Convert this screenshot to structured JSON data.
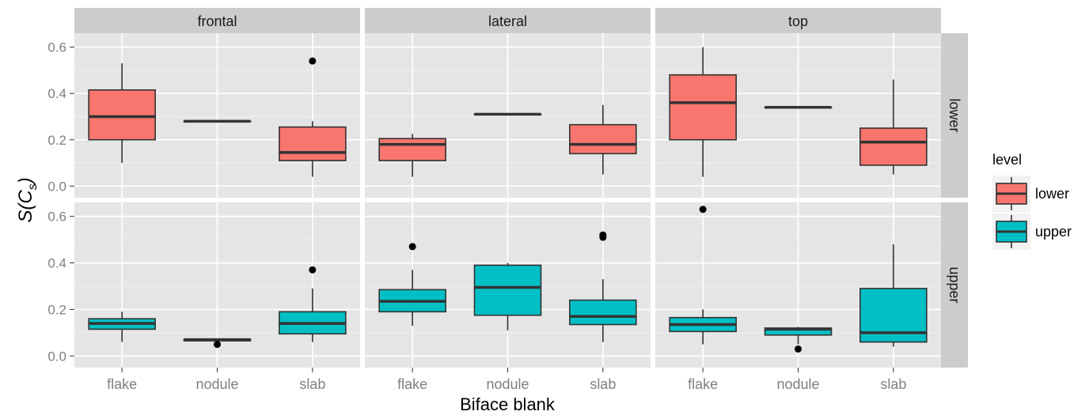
{
  "chart_data": {
    "type": "boxplot",
    "xlabel": "Biface blank",
    "ylabel_main": "S(C",
    "ylabel_sub": "s",
    "ylabel_close": ")",
    "categories": [
      "flake",
      "nodule",
      "slab"
    ],
    "facet_columns": [
      "frontal",
      "lateral",
      "top"
    ],
    "facet_rows": [
      "lower",
      "upper"
    ],
    "y_ticks": [
      "0.0",
      "0.2",
      "0.4",
      "0.6"
    ],
    "y_tick_values": [
      0.0,
      0.2,
      0.4,
      0.6
    ],
    "ylim": [
      -0.05,
      0.66
    ],
    "legend": {
      "title": "level",
      "position": "right",
      "entries": [
        {
          "label": "lower",
          "color": "#F8766D"
        },
        {
          "label": "upper",
          "color": "#00BFC4"
        }
      ]
    },
    "colors": {
      "panel_bg": "#E5E5E5",
      "grid": "#FFFFFF",
      "strip_bg": "#CCCCCC",
      "lower": "#F8766D",
      "upper": "#00BFC4",
      "line": "#333333"
    },
    "panels": [
      {
        "row": "lower",
        "col": "frontal",
        "boxes": [
          {
            "category": "flake",
            "min": 0.1,
            "q1": 0.2,
            "median": 0.3,
            "q3": 0.415,
            "max": 0.53,
            "outliers": []
          },
          {
            "category": "nodule",
            "min": 0.28,
            "q1": 0.28,
            "median": 0.28,
            "q3": 0.28,
            "max": 0.28,
            "outliers": []
          },
          {
            "category": "slab",
            "min": 0.04,
            "q1": 0.11,
            "median": 0.145,
            "q3": 0.255,
            "max": 0.28,
            "outliers": [
              0.54
            ]
          }
        ]
      },
      {
        "row": "lower",
        "col": "lateral",
        "boxes": [
          {
            "category": "flake",
            "min": 0.04,
            "q1": 0.11,
            "median": 0.18,
            "q3": 0.205,
            "max": 0.225,
            "outliers": []
          },
          {
            "category": "nodule",
            "min": 0.31,
            "q1": 0.31,
            "median": 0.31,
            "q3": 0.31,
            "max": 0.31,
            "outliers": []
          },
          {
            "category": "slab",
            "min": 0.05,
            "q1": 0.14,
            "median": 0.18,
            "q3": 0.265,
            "max": 0.35,
            "outliers": []
          }
        ]
      },
      {
        "row": "lower",
        "col": "top",
        "boxes": [
          {
            "category": "flake",
            "min": 0.04,
            "q1": 0.2,
            "median": 0.36,
            "q3": 0.48,
            "max": 0.6,
            "outliers": []
          },
          {
            "category": "nodule",
            "min": 0.34,
            "q1": 0.34,
            "median": 0.34,
            "q3": 0.34,
            "max": 0.34,
            "outliers": []
          },
          {
            "category": "slab",
            "min": 0.05,
            "q1": 0.09,
            "median": 0.19,
            "q3": 0.25,
            "max": 0.46,
            "outliers": []
          }
        ]
      },
      {
        "row": "upper",
        "col": "frontal",
        "boxes": [
          {
            "category": "flake",
            "min": 0.06,
            "q1": 0.115,
            "median": 0.14,
            "q3": 0.16,
            "max": 0.19,
            "outliers": []
          },
          {
            "category": "nodule",
            "min": 0.065,
            "q1": 0.065,
            "median": 0.07,
            "q3": 0.072,
            "max": 0.075,
            "outliers": [
              0.05
            ]
          },
          {
            "category": "slab",
            "min": 0.06,
            "q1": 0.095,
            "median": 0.14,
            "q3": 0.19,
            "max": 0.29,
            "outliers": [
              0.37
            ]
          }
        ]
      },
      {
        "row": "upper",
        "col": "lateral",
        "boxes": [
          {
            "category": "flake",
            "min": 0.13,
            "q1": 0.19,
            "median": 0.235,
            "q3": 0.285,
            "max": 0.37,
            "outliers": [
              0.47
            ]
          },
          {
            "category": "nodule",
            "min": 0.11,
            "q1": 0.175,
            "median": 0.295,
            "q3": 0.39,
            "max": 0.4,
            "outliers": []
          },
          {
            "category": "slab",
            "min": 0.06,
            "q1": 0.135,
            "median": 0.17,
            "q3": 0.24,
            "max": 0.33,
            "outliers": [
              0.51,
              0.52
            ]
          }
        ]
      },
      {
        "row": "upper",
        "col": "top",
        "boxes": [
          {
            "category": "flake",
            "min": 0.05,
            "q1": 0.105,
            "median": 0.135,
            "q3": 0.165,
            "max": 0.2,
            "outliers": [
              0.63
            ]
          },
          {
            "category": "nodule",
            "min": 0.05,
            "q1": 0.09,
            "median": 0.115,
            "q3": 0.12,
            "max": 0.125,
            "outliers": [
              0.03
            ]
          },
          {
            "category": "slab",
            "min": 0.04,
            "q1": 0.06,
            "median": 0.1,
            "q3": 0.29,
            "max": 0.48,
            "outliers": []
          }
        ]
      }
    ]
  }
}
